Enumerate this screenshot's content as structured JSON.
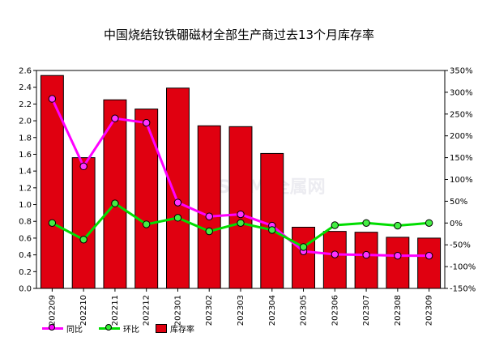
{
  "chart_data": {
    "type": "bar",
    "title": "中国烧结钕铁硼磁材全部生产商过去13个月库存率",
    "watermark": "SMM 全属网",
    "categories": [
      "202209",
      "202210",
      "202211",
      "202212",
      "202301",
      "202302",
      "202303",
      "202304",
      "202305",
      "202306",
      "202307",
      "202308",
      "202309"
    ],
    "series": [
      {
        "name": "库存率",
        "axis": "left",
        "type": "bar",
        "color": "#e00010",
        "values": [
          2.54,
          1.56,
          2.25,
          2.14,
          2.39,
          1.94,
          1.93,
          1.61,
          0.73,
          0.68,
          0.67,
          0.61,
          0.6
        ]
      },
      {
        "name": "同比",
        "axis": "right",
        "type": "line",
        "color": "#ff00ff",
        "unit": "%",
        "values": [
          285,
          130,
          240,
          230,
          47,
          15,
          20,
          -6,
          -65,
          -72,
          -73,
          -75,
          -75
        ]
      },
      {
        "name": "环比",
        "axis": "right",
        "type": "line",
        "color": "#00dd00",
        "unit": "%",
        "values": [
          0,
          -38,
          45,
          -3,
          12,
          -19,
          0,
          -16,
          -55,
          -5,
          0,
          -6,
          0
        ]
      }
    ],
    "y_left": {
      "min": 0,
      "max": 2.6,
      "ticks": [
        "0.0",
        "0.2",
        "0.4",
        "0.6",
        "0.8",
        "1.0",
        "1.2",
        "1.4",
        "1.6",
        "1.8",
        "2.0",
        "2.2",
        "2.4",
        "2.6"
      ]
    },
    "y_right": {
      "min": -150,
      "max": 350,
      "ticks": [
        "-150%",
        "-100%",
        "-50%",
        "0%",
        "50%",
        "100%",
        "150%",
        "200%",
        "250%",
        "300%",
        "350%"
      ]
    },
    "grid": false,
    "legend_placement": "bottom-left",
    "colors": {
      "bar": "#e00010",
      "yoy": "#ff00ff",
      "mom": "#00dd00",
      "background": "#ffffff"
    }
  }
}
